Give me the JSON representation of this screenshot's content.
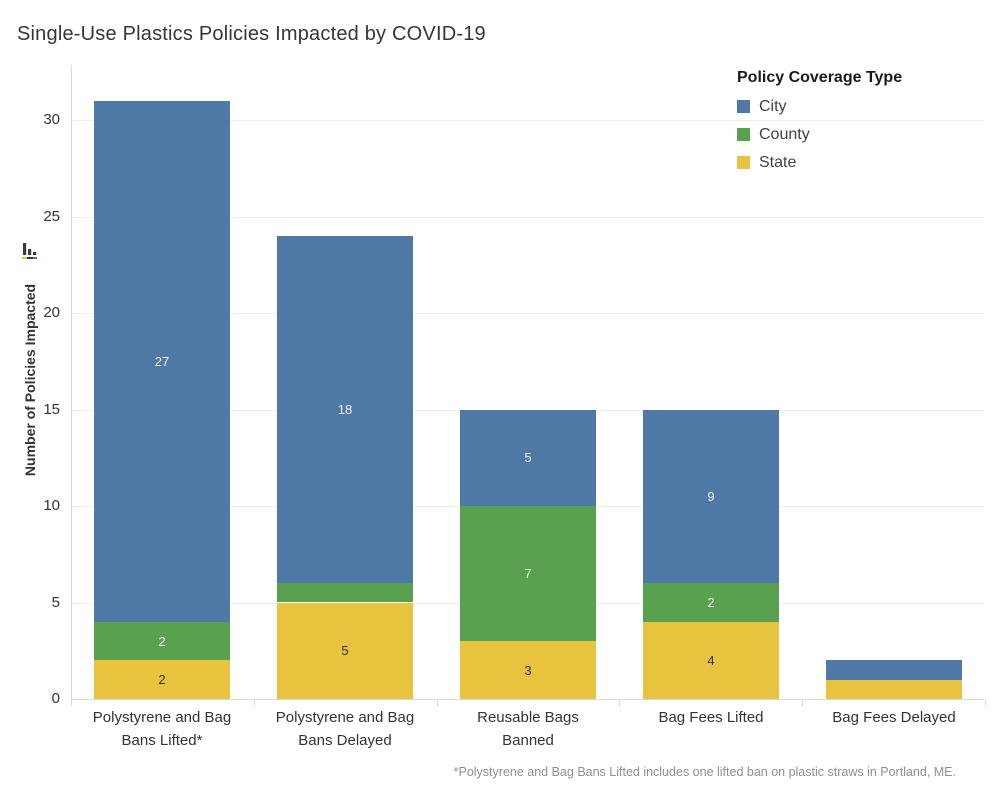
{
  "title": "Single-Use Plastics Policies Impacted by COVID-19",
  "footnote": "*Polystyrene and Bag Bans Lifted includes one lifted ban on plastic straws in Portland, ME.",
  "chart_data": {
    "type": "bar",
    "stacked": true,
    "title": "Single-Use Plastics Policies Impacted by COVID-19",
    "ylabel": "Number of Policies Impacted",
    "xlabel": "",
    "categories": [
      "Polystyrene and Bag Bans Lifted*",
      "Polystyrene and Bag Bans Delayed",
      "Reusable Bags Banned",
      "Bag Fees Lifted",
      "Bag Fees Delayed"
    ],
    "category_labels_wrapped": [
      [
        "Polystyrene and Bag",
        "Bans Lifted*"
      ],
      [
        "Polystyrene and Bag",
        "Bans Delayed"
      ],
      [
        "Reusable Bags",
        "Banned"
      ],
      [
        "Bag Fees Lifted"
      ],
      [
        "Bag Fees Delayed"
      ]
    ],
    "series": [
      {
        "name": "State",
        "color": "#e8c33d",
        "values": [
          2,
          5,
          3,
          4,
          1
        ]
      },
      {
        "name": "County",
        "color": "#59a14f",
        "values": [
          2,
          1,
          7,
          2,
          0
        ]
      },
      {
        "name": "City",
        "color": "#4e79a7",
        "values": [
          27,
          18,
          5,
          9,
          1
        ]
      }
    ],
    "stack_order_bottom_to_top": [
      "State",
      "County",
      "City"
    ],
    "totals": [
      31,
      24,
      15,
      15,
      2
    ],
    "yticks": [
      0,
      5,
      10,
      15,
      20,
      25,
      30
    ],
    "ylim": [
      0,
      32.8
    ],
    "grid": true,
    "label_min_value": 2,
    "label_text_colors": {
      "City": "#f2f2f2",
      "County": "#f2f2f2",
      "State": "#333333"
    },
    "legend": {
      "title": "Policy Coverage Type",
      "position": "top-right",
      "items": [
        "City",
        "County",
        "State"
      ]
    }
  },
  "icons": {
    "sort": "sort-descending-bars-icon"
  }
}
